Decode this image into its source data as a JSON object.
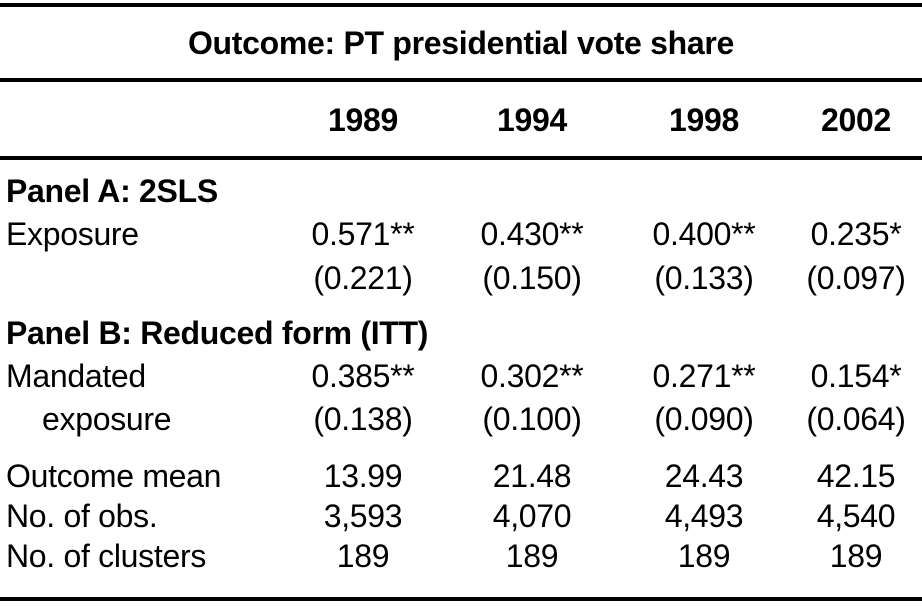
{
  "title": "Outcome: PT presidential vote share",
  "columns": [
    "1989",
    "1994",
    "1998",
    "2002"
  ],
  "panel_a": {
    "header": "Panel A: 2SLS",
    "row_label": "Exposure",
    "estimates": [
      "0.571**",
      "0.430**",
      "0.400**",
      "0.235*"
    ],
    "std_errors": [
      "(0.221)",
      "(0.150)",
      "(0.133)",
      "(0.097)"
    ]
  },
  "panel_b": {
    "header": "Panel B: Reduced form (ITT)",
    "row_label_line1": "Mandated",
    "row_label_line2": "exposure",
    "estimates": [
      "0.385**",
      "0.302**",
      "0.271**",
      "0.154*"
    ],
    "std_errors": [
      "(0.138)",
      "(0.100)",
      "(0.090)",
      "(0.064)"
    ]
  },
  "summary_rows": [
    {
      "label": "Outcome mean",
      "values": [
        "13.99",
        "21.48",
        "24.43",
        "42.15"
      ]
    },
    {
      "label": "No. of obs.",
      "values": [
        "3,593",
        "4,070",
        "4,493",
        "4,540"
      ]
    },
    {
      "label": "No. of clusters",
      "values": [
        "189",
        "189",
        "189",
        "189"
      ]
    }
  ],
  "colors": {
    "text": "#000000",
    "rule": "#000000",
    "background": "#ffffff"
  }
}
